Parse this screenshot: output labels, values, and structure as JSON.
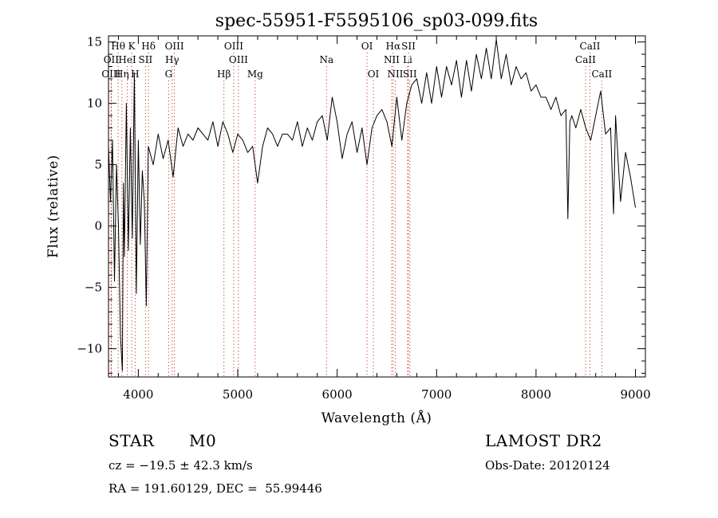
{
  "chart_data": {
    "type": "line",
    "title": "spec-55951-F5595106_sp03-099.fits",
    "xlabel": "Wavelength (Å)",
    "ylabel": "Flux (relative)",
    "xlim": [
      3700,
      9100
    ],
    "ylim": [
      -12.3,
      15.5
    ],
    "x_ticks": [
      4000,
      5000,
      6000,
      7000,
      8000,
      9000
    ],
    "y_ticks": [
      -10,
      -5,
      0,
      5,
      10,
      15
    ],
    "tick_labels_x": [
      "4000",
      "5000",
      "6000",
      "7000",
      "8000",
      "9000"
    ],
    "tick_labels_y": [
      "−10",
      "−5",
      "0",
      "5",
      "10",
      "15"
    ],
    "grid": false,
    "series": [
      {
        "x": [
          3700,
          3720,
          3740,
          3760,
          3780,
          3800,
          3820,
          3840,
          3850,
          3860,
          3880,
          3900,
          3920,
          3940,
          3960,
          3980,
          4000,
          4020,
          4040,
          4060,
          4080,
          4100,
          4150,
          4200,
          4250,
          4300,
          4350,
          4400,
          4450,
          4500,
          4550,
          4600,
          4650,
          4700,
          4750,
          4800,
          4850,
          4900,
          4950,
          5000,
          5050,
          5100,
          5150,
          5200,
          5250,
          5300,
          5350,
          5400,
          5450,
          5500,
          5550,
          5600,
          5650,
          5700,
          5750,
          5800,
          5850,
          5900,
          5950,
          6000,
          6050,
          6100,
          6150,
          6200,
          6250,
          6300,
          6350,
          6400,
          6450,
          6500,
          6550,
          6600,
          6650,
          6700,
          6750,
          6800,
          6850,
          6900,
          6950,
          7000,
          7050,
          7100,
          7150,
          7200,
          7250,
          7300,
          7350,
          7400,
          7450,
          7500,
          7550,
          7600,
          7650,
          7700,
          7750,
          7800,
          7850,
          7900,
          7950,
          8000,
          8050,
          8100,
          8150,
          8200,
          8250,
          8300,
          8320,
          8340,
          8360,
          8400,
          8450,
          8500,
          8550,
          8600,
          8650,
          8700,
          8750,
          8780,
          8800,
          8850,
          8900,
          8950,
          9000
        ],
        "y": [
          6.5,
          2.0,
          7.0,
          -4.5,
          5.0,
          0.0,
          -9.0,
          -11.8,
          3.5,
          -2.5,
          10.0,
          -2.0,
          8.0,
          -1.0,
          12.5,
          -5.5,
          7.0,
          -1.5,
          4.5,
          2.0,
          -6.5,
          6.5,
          5.0,
          7.5,
          5.5,
          7.0,
          4.0,
          8.0,
          6.5,
          7.5,
          7.0,
          8.0,
          7.5,
          7.0,
          8.5,
          6.5,
          8.5,
          7.5,
          6.0,
          7.5,
          7.0,
          6.0,
          6.5,
          3.5,
          6.5,
          8.0,
          7.5,
          6.5,
          7.5,
          7.5,
          7.0,
          8.5,
          6.5,
          8.0,
          7.0,
          8.5,
          9.0,
          7.0,
          10.5,
          8.5,
          5.5,
          7.5,
          8.5,
          6.0,
          8.0,
          5.0,
          8.0,
          9.0,
          9.5,
          8.5,
          6.5,
          10.5,
          7.0,
          10.0,
          11.5,
          12.0,
          10.0,
          12.5,
          10.0,
          13.0,
          10.5,
          13.0,
          11.5,
          13.5,
          10.5,
          13.5,
          11.0,
          14.0,
          12.0,
          14.5,
          12.0,
          15.2,
          12.0,
          14.0,
          11.5,
          13.0,
          12.0,
          12.5,
          11.0,
          11.5,
          10.5,
          10.5,
          9.5,
          10.5,
          9.0,
          9.5,
          0.6,
          8.5,
          9.0,
          8.0,
          9.5,
          8.0,
          7.0,
          9.0,
          11.0,
          7.5,
          8.0,
          1.0,
          9.0,
          2.0,
          6.0,
          4.0,
          1.5
        ]
      }
    ],
    "line_markers": [
      {
        "label": "Hθ",
        "wavelength": 3797,
        "row": 1
      },
      {
        "label": "K",
        "wavelength": 3934,
        "row": 1
      },
      {
        "label": "Hδ",
        "wavelength": 4102,
        "row": 1
      },
      {
        "label": "OIII",
        "wavelength": 4363,
        "row": 1
      },
      {
        "label": "OIII",
        "wavelength": 4959,
        "row": 1
      },
      {
        "label": "OI",
        "wavelength": 6300,
        "row": 1
      },
      {
        "label": "Hα",
        "wavelength": 6563,
        "row": 1
      },
      {
        "label": "SII",
        "wavelength": 6717,
        "row": 1
      },
      {
        "label": "CaII",
        "wavelength": 8542,
        "row": 1
      },
      {
        "label": "OII",
        "wavelength": 3727,
        "row": 2
      },
      {
        "label": "HeI",
        "wavelength": 3889,
        "row": 2
      },
      {
        "label": "SII",
        "wavelength": 4072,
        "row": 2
      },
      {
        "label": "Hγ",
        "wavelength": 4340,
        "row": 2
      },
      {
        "label": "OIII",
        "wavelength": 5007,
        "row": 2
      },
      {
        "label": "Na",
        "wavelength": 5893,
        "row": 2
      },
      {
        "label": "NII",
        "wavelength": 6548,
        "row": 2
      },
      {
        "label": "Li",
        "wavelength": 6708,
        "row": 2
      },
      {
        "label": "CaII",
        "wavelength": 8498,
        "row": 2
      },
      {
        "label": "OIII",
        "wavelength": 3727,
        "row": 3
      },
      {
        "label": "Hη",
        "wavelength": 3835,
        "row": 3
      },
      {
        "label": "H",
        "wavelength": 3968,
        "row": 3
      },
      {
        "label": "G",
        "wavelength": 4305,
        "row": 3
      },
      {
        "label": "Hβ",
        "wavelength": 4861,
        "row": 3
      },
      {
        "label": "Mg",
        "wavelength": 5175,
        "row": 3
      },
      {
        "label": "OI",
        "wavelength": 6364,
        "row": 3
      },
      {
        "label": "NII",
        "wavelength": 6584,
        "row": 3
      },
      {
        "label": "SII",
        "wavelength": 6731,
        "row": 3
      },
      {
        "label": "CaII",
        "wavelength": 8662,
        "row": 3
      }
    ],
    "line_marker_colors": {
      "line": "#c0392b",
      "dots": "#7a1f1f"
    }
  },
  "info": {
    "object_class": "STAR",
    "subclass": "M0",
    "survey": "LAMOST DR2",
    "redshift": "cz = −19.5 ± 42.3 km/s",
    "obs_date": "Obs-Date: 20120124",
    "coords": "RA = 191.60129, DEC =  55.99446"
  }
}
